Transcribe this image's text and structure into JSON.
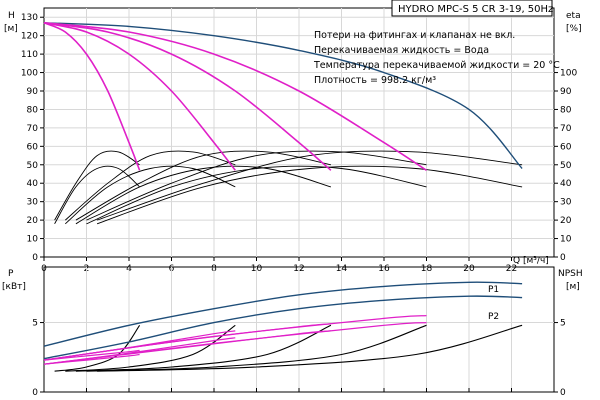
{
  "chart_data": [
    {
      "type": "line",
      "panel": "head-efficiency",
      "title": "HYDRO MPC-S 5 CR 3-19, 50Hz",
      "notes": [
        "Потери на фитингах и клапанах не вкл.",
        "Перекачиваемая жидкость = Вода",
        "Температура перекачиваемой жидкости = 20 °C",
        "Плотность = 998.2 кг/м³"
      ],
      "xlabel": "Q",
      "xunit": "[м³/ч]",
      "ylabel_left": "H",
      "yunit_left": "[м]",
      "ylabel_right": "eta",
      "yunit_right": "[%]",
      "xlim": [
        0,
        24
      ],
      "ylim_left": [
        0,
        135
      ],
      "ylim_right": [
        0,
        135
      ],
      "xticks": [
        0,
        2,
        4,
        6,
        8,
        10,
        12,
        14,
        16,
        18,
        20,
        22
      ],
      "yticks_left": [
        0,
        10,
        20,
        30,
        40,
        50,
        60,
        70,
        80,
        90,
        100,
        110,
        120,
        130
      ],
      "yticks_right": [
        0,
        10,
        20,
        30,
        40,
        50,
        60,
        70,
        80,
        90,
        100
      ],
      "grid": true,
      "colors": {
        "system_curve": "#1f4e79",
        "pump_curves": "#e020c8",
        "efficiency": "#000000"
      },
      "head_curves": [
        {
          "role": "system",
          "color": "#1f4e79",
          "points": [
            [
              0,
              127
            ],
            [
              4,
              125
            ],
            [
              8,
              120
            ],
            [
              12,
              112
            ],
            [
              16,
              100
            ],
            [
              20,
              80
            ],
            [
              22.5,
              48
            ]
          ]
        },
        {
          "role": "pump",
          "pumps": 1,
          "color": "#e020c8",
          "points": [
            [
              0,
              127
            ],
            [
              1,
              122
            ],
            [
              2,
              110
            ],
            [
              3,
              90
            ],
            [
              4,
              62
            ],
            [
              4.5,
              47
            ]
          ]
        },
        {
          "role": "pump",
          "pumps": 2,
          "color": "#e020c8",
          "points": [
            [
              0,
              127
            ],
            [
              2,
              122
            ],
            [
              4,
              110
            ],
            [
              6,
              90
            ],
            [
              8,
              62
            ],
            [
              9,
              47
            ]
          ]
        },
        {
          "role": "pump",
          "pumps": 3,
          "color": "#e020c8",
          "points": [
            [
              0,
              127
            ],
            [
              3,
              122
            ],
            [
              6,
              110
            ],
            [
              9,
              90
            ],
            [
              12,
              62
            ],
            [
              13.5,
              47
            ]
          ]
        },
        {
          "role": "pump",
          "pumps": 4,
          "color": "#e020c8",
          "points": [
            [
              0,
              127
            ],
            [
              4,
              122
            ],
            [
              8,
              110
            ],
            [
              12,
              90
            ],
            [
              16,
              62
            ],
            [
              18,
              47
            ]
          ]
        }
      ],
      "efficiency_curves": [
        {
          "points": [
            [
              0.5,
              20
            ],
            [
              1.5,
              40
            ],
            [
              2.5,
              55
            ],
            [
              3.5,
              57
            ],
            [
              4.5,
              50
            ]
          ]
        },
        {
          "points": [
            [
              0.5,
              18
            ],
            [
              1.5,
              38
            ],
            [
              2.5,
              48
            ],
            [
              3.5,
              48
            ],
            [
              4.5,
              38
            ]
          ]
        },
        {
          "points": [
            [
              1.0,
              20
            ],
            [
              3.0,
              40
            ],
            [
              5.0,
              55
            ],
            [
              7.0,
              57
            ],
            [
              9.0,
              50
            ]
          ]
        },
        {
          "points": [
            [
              1.0,
              18
            ],
            [
              3.0,
              38
            ],
            [
              5.0,
              48
            ],
            [
              7.0,
              48
            ],
            [
              9.0,
              38
            ]
          ]
        },
        {
          "points": [
            [
              1.5,
              20
            ],
            [
              4.5,
              40
            ],
            [
              7.5,
              55
            ],
            [
              10.5,
              57
            ],
            [
              13.5,
              50
            ]
          ]
        },
        {
          "points": [
            [
              1.5,
              18
            ],
            [
              4.5,
              38
            ],
            [
              7.5,
              48
            ],
            [
              10.5,
              48
            ],
            [
              13.5,
              38
            ]
          ]
        },
        {
          "points": [
            [
              2.0,
              20
            ],
            [
              6.0,
              40
            ],
            [
              10.0,
              55
            ],
            [
              14.0,
              57
            ],
            [
              18.0,
              50
            ]
          ]
        },
        {
          "points": [
            [
              2.0,
              18
            ],
            [
              6.0,
              38
            ],
            [
              10.0,
              48
            ],
            [
              14.0,
              48
            ],
            [
              18.0,
              38
            ]
          ]
        },
        {
          "points": [
            [
              2.5,
              20
            ],
            [
              7.5,
              40
            ],
            [
              12.5,
              55
            ],
            [
              17.5,
              57
            ],
            [
              22.5,
              50
            ]
          ]
        },
        {
          "points": [
            [
              2.5,
              18
            ],
            [
              7.5,
              38
            ],
            [
              12.5,
              48
            ],
            [
              17.5,
              48
            ],
            [
              22.5,
              38
            ]
          ]
        }
      ]
    },
    {
      "type": "line",
      "panel": "power-npsh",
      "ylabel_left": "P",
      "yunit_left": "[кВт]",
      "ylabel_right": "NPSH",
      "yunit_right": "[м]",
      "xlim": [
        0,
        24
      ],
      "ylim_left": [
        0,
        9
      ],
      "ylim_right": [
        0,
        9
      ],
      "yticks_left": [
        0,
        5
      ],
      "yticks_right": [
        0,
        5
      ],
      "grid": true,
      "series_labels": [
        "P1",
        "P2"
      ],
      "power_curves": [
        {
          "name": "P1",
          "color": "#1f4e79",
          "points": [
            [
              0,
              3.3
            ],
            [
              4,
              4.8
            ],
            [
              8,
              6.0
            ],
            [
              12,
              7.0
            ],
            [
              16,
              7.6
            ],
            [
              20,
              7.9
            ],
            [
              22.5,
              7.8
            ]
          ]
        },
        {
          "name": "P2",
          "color": "#1f4e79",
          "points": [
            [
              0,
              2.4
            ],
            [
              4,
              3.6
            ],
            [
              8,
              5.0
            ],
            [
              12,
              6.0
            ],
            [
              16,
              6.6
            ],
            [
              20,
              6.9
            ],
            [
              22.5,
              6.8
            ]
          ]
        },
        {
          "color": "#e020c8",
          "points": [
            [
              0,
              2.3
            ],
            [
              2,
              2.6
            ],
            [
              4,
              2.9
            ],
            [
              4.5,
              3.0
            ]
          ]
        },
        {
          "color": "#e020c8",
          "points": [
            [
              0,
              2.0
            ],
            [
              2,
              2.3
            ],
            [
              4,
              2.6
            ],
            [
              4.5,
              2.7
            ]
          ]
        },
        {
          "color": "#e020c8",
          "points": [
            [
              0,
              2.3
            ],
            [
              4,
              3.2
            ],
            [
              8,
              4.2
            ],
            [
              9,
              4.4
            ]
          ]
        },
        {
          "color": "#e020c8",
          "points": [
            [
              0,
              2.0
            ],
            [
              4,
              2.8
            ],
            [
              8,
              3.7
            ],
            [
              9,
              3.9
            ]
          ]
        },
        {
          "color": "#e020c8",
          "points": [
            [
              0,
              2.3
            ],
            [
              6,
              3.6
            ],
            [
              12,
              4.7
            ],
            [
              13.5,
              4.9
            ]
          ]
        },
        {
          "color": "#e020c8",
          "points": [
            [
              0,
              2.0
            ],
            [
              6,
              3.1
            ],
            [
              12,
              4.2
            ],
            [
              13.5,
              4.4
            ]
          ]
        },
        {
          "color": "#e020c8",
          "points": [
            [
              0,
              2.3
            ],
            [
              8,
              4.0
            ],
            [
              16,
              5.3
            ],
            [
              18,
              5.5
            ]
          ]
        },
        {
          "color": "#e020c8",
          "points": [
            [
              0,
              2.0
            ],
            [
              8,
              3.5
            ],
            [
              16,
              4.8
            ],
            [
              18,
              5.0
            ]
          ]
        }
      ],
      "npsh_curves": [
        {
          "points": [
            [
              0.5,
              1.5
            ],
            [
              2.0,
              1.8
            ],
            [
              3.5,
              2.7
            ],
            [
              4.5,
              4.8
            ]
          ]
        },
        {
          "points": [
            [
              1.0,
              1.5
            ],
            [
              4.0,
              1.8
            ],
            [
              7.0,
              2.7
            ],
            [
              9.0,
              4.8
            ]
          ]
        },
        {
          "points": [
            [
              1.5,
              1.5
            ],
            [
              6.0,
              1.8
            ],
            [
              10.5,
              2.7
            ],
            [
              13.5,
              4.8
            ]
          ]
        },
        {
          "points": [
            [
              2.0,
              1.5
            ],
            [
              8.0,
              1.8
            ],
            [
              14.0,
              2.7
            ],
            [
              18.0,
              4.8
            ]
          ]
        },
        {
          "points": [
            [
              2.5,
              1.5
            ],
            [
              10.0,
              1.8
            ],
            [
              17.5,
              2.7
            ],
            [
              22.5,
              4.8
            ]
          ]
        }
      ]
    }
  ]
}
